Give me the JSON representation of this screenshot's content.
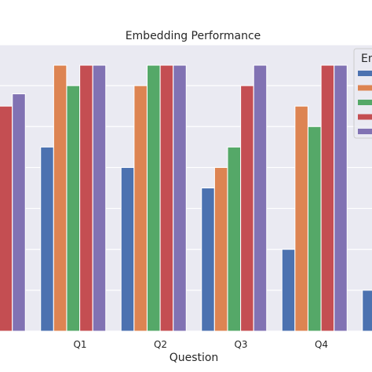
{
  "chart_data": {
    "type": "bar",
    "title": "Embedding Performance",
    "xlabel": "Question",
    "ylabel": "",
    "categories": [
      "",
      "Q1",
      "Q2",
      "Q3",
      "Q4",
      ""
    ],
    "ylim": [
      0,
      7
    ],
    "grid": true,
    "legend": {
      "title": "Em",
      "placement": "top-right",
      "entries": [
        "",
        "",
        "",
        "",
        ""
      ]
    },
    "colors": [
      "#4c72b0",
      "#dd8452",
      "#55a868",
      "#c44e52",
      "#8172b3"
    ],
    "series": [
      {
        "values": [
          null,
          4.5,
          4.0,
          3.5,
          2.0,
          1.0
        ]
      },
      {
        "values": [
          null,
          6.5,
          6.0,
          4.0,
          5.5,
          null
        ]
      },
      {
        "values": [
          null,
          6.0,
          6.5,
          4.5,
          5.0,
          null
        ]
      },
      {
        "values": [
          5.5,
          6.5,
          6.5,
          6.0,
          6.5,
          null
        ]
      },
      {
        "values": [
          5.8,
          6.5,
          6.5,
          6.5,
          6.5,
          null
        ]
      }
    ]
  }
}
